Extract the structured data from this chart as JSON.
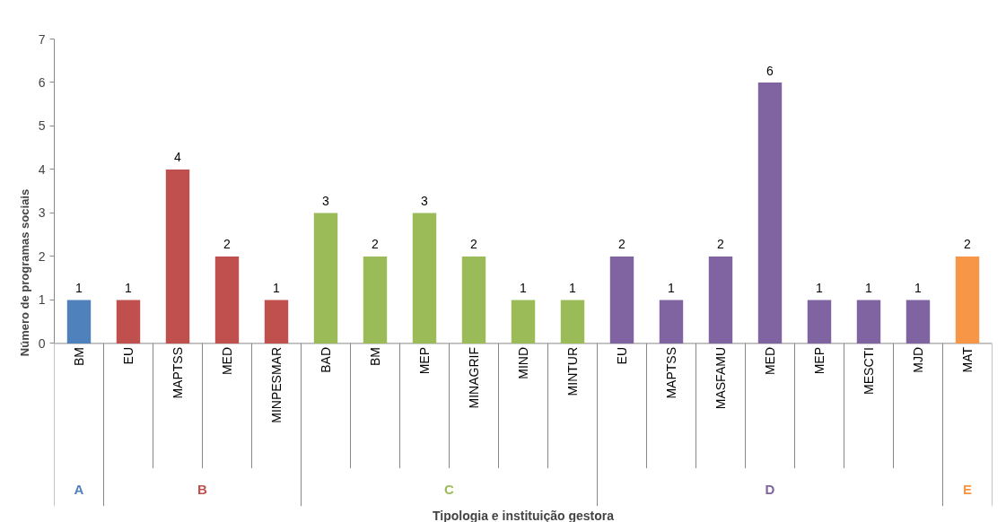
{
  "chart_data": {
    "type": "bar",
    "annotations": [
      "Tipologia e instituição gestora"
    ],
    "ylabel": "Número de programas sociais",
    "categories": [
      "BM",
      "EU",
      "MAPTSS",
      "MED",
      "MINPESMAR",
      "BAD",
      "BM",
      "MEP",
      "MINAGRIF",
      "MIND",
      "MINTUR",
      "EU",
      "MAPTSS",
      "MASFAMU",
      "MED",
      "MEP",
      "MESCTI",
      "MJD",
      "MAT"
    ],
    "series": [
      {
        "name": "A",
        "color": "#4f81bd",
        "values": [
          1,
          null,
          null,
          null,
          null,
          null,
          null,
          null,
          null,
          null,
          null,
          null,
          null,
          null,
          null,
          null,
          null,
          null,
          null
        ]
      },
      {
        "name": "B",
        "color": "#c0504d",
        "values": [
          null,
          1,
          4,
          2,
          1,
          null,
          null,
          null,
          null,
          null,
          null,
          null,
          null,
          null,
          null,
          null,
          null,
          null,
          null
        ]
      },
      {
        "name": "C",
        "color": "#9bbb59",
        "values": [
          null,
          null,
          null,
          null,
          null,
          3,
          2,
          3,
          2,
          1,
          1,
          null,
          null,
          null,
          null,
          null,
          null,
          null,
          null
        ]
      },
      {
        "name": "D",
        "color": "#8064a2",
        "values": [
          null,
          null,
          null,
          null,
          null,
          null,
          null,
          null,
          null,
          null,
          null,
          2,
          1,
          2,
          6,
          1,
          1,
          1,
          null
        ]
      },
      {
        "name": "E",
        "color": "#f79646",
        "values": [
          null,
          null,
          null,
          null,
          null,
          null,
          null,
          null,
          null,
          null,
          null,
          null,
          null,
          null,
          null,
          null,
          null,
          null,
          2
        ]
      }
    ],
    "ylim": [
      0,
      7
    ],
    "yticks": [
      0,
      1,
      2,
      3,
      4,
      5,
      6,
      7
    ],
    "data_labels": true,
    "grid": false
  }
}
